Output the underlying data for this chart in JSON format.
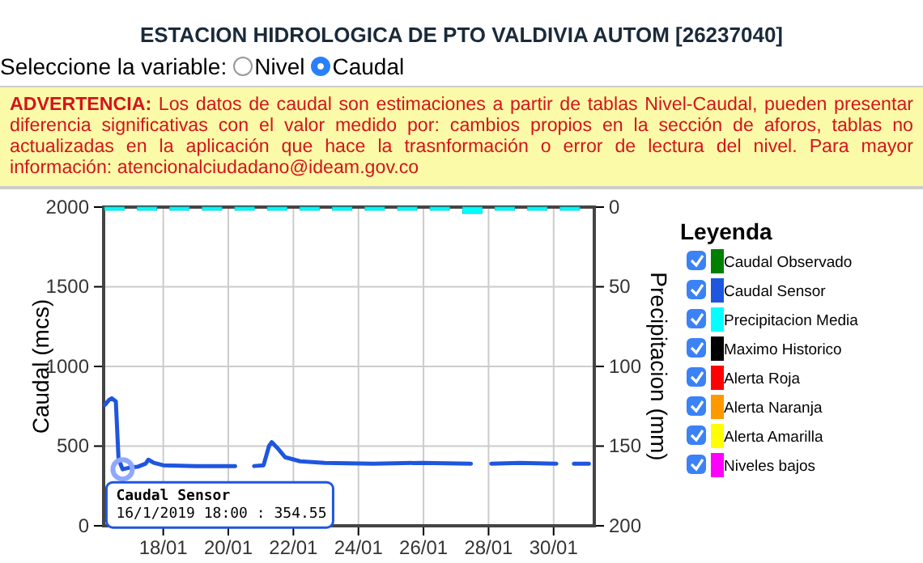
{
  "chart_data": {
    "type": "line",
    "title": "ESTACION HIDROLOGICA DE PTO VALDIVIA AUTOM [26237040]",
    "annotations": [
      "Seleccione la variable:",
      "Nivel",
      "Caudal",
      "ADVERTENCIA:",
      "Los datos de caudal son estimaciones a partir de tablas Nivel-Caudal, pueden presentar diferencia significativas con el valor medido por: cambios propios en la sección de aforos, tablas no actualizadas en la aplicación que hace la trasnformación o error de lectura del nivel. Para mayor información: atencionalciudadano@ideam.gov.co",
      {
        "text": "Caudal Sensor\n16/1/2019 18:00 : 354.55",
        "x": "2019-01-16T18:00",
        "y": 354.55
      }
    ],
    "ylabel": "Caudal (mcs)",
    "y2label": "Precipitacion (mm)",
    "legend_title": "Leyenda",
    "legend": "right",
    "grid": true,
    "xlim": [
      "2019-01-16T04:00",
      "2019-01-31T06:00"
    ],
    "xticks": [
      {
        "value": "2019-01-18",
        "label": "18/01"
      },
      {
        "value": "2019-01-20",
        "label": "20/01"
      },
      {
        "value": "2019-01-22",
        "label": "22/01"
      },
      {
        "value": "2019-01-24",
        "label": "24/01"
      },
      {
        "value": "2019-01-26",
        "label": "26/01"
      },
      {
        "value": "2019-01-28",
        "label": "28/01"
      },
      {
        "value": "2019-01-30",
        "label": "30/01"
      }
    ],
    "ylim": [
      0,
      2000
    ],
    "yticks": [
      0,
      500,
      1000,
      1500,
      2000
    ],
    "y2lim": [
      200,
      0
    ],
    "y2ticks": [
      0,
      50,
      100,
      150,
      200
    ],
    "series": [
      {
        "name": "Caudal Observado",
        "color": "#008000"
      },
      {
        "name": "Caudal Sensor",
        "color": "#1f56e0",
        "x": [
          "2019-01-16T05:00",
          "2019-01-16T08:00",
          "2019-01-16T10:00",
          "2019-01-16T13:00",
          "2019-01-16T15:00",
          "2019-01-16T18:00",
          "2019-01-16T23:00",
          "2019-01-17T05:00",
          "2019-01-17T11:00",
          "2019-01-17T13:00",
          "2019-01-17T17:00",
          "2019-01-18T00:00",
          "2019-01-19T00:00",
          "2019-01-20T05:00",
          "2019-01-20T12:00",
          "2019-01-20T19:00",
          "2019-01-21T02:00",
          "2019-01-21T06:00",
          "2019-01-21T08:00",
          "2019-01-21T12:00",
          "2019-01-21T18:00",
          "2019-01-22T05:00",
          "2019-01-22T23:00",
          "2019-01-24T11:00",
          "2019-01-25T23:00",
          "2019-01-27T11:00",
          "2019-01-27T18:00",
          "2019-01-28T02:00",
          "2019-01-28T23:00",
          "2019-01-30T02:00",
          "2019-01-30T12:00",
          "2019-01-30T15:00",
          "2019-01-31T02:00"
        ],
        "values": [
          760,
          790,
          800,
          780,
          420,
          354.55,
          365,
          370,
          390,
          415,
          395,
          380,
          375,
          375,
          null,
          375,
          380,
          500,
          525,
          490,
          430,
          405,
          395,
          390,
          395,
          390,
          null,
          390,
          395,
          390,
          null,
          390,
          390
        ]
      },
      {
        "name": "Precipitacion Media",
        "type": "bar",
        "axis": "y2",
        "color": "#00ffff",
        "x": [
          "2019-01-16T12:00",
          "2019-01-17T12:00",
          "2019-01-18T12:00",
          "2019-01-19T12:00",
          "2019-01-20T12:00",
          "2019-01-21T12:00",
          "2019-01-22T12:00",
          "2019-01-23T12:00",
          "2019-01-24T12:00",
          "2019-01-25T12:00",
          "2019-01-26T12:00",
          "2019-01-27T12:00",
          "2019-01-28T12:00",
          "2019-01-29T12:00",
          "2019-01-30T12:00"
        ],
        "values": [
          2,
          2,
          2,
          2,
          2,
          2,
          2,
          2,
          2,
          2,
          2,
          4,
          2,
          2,
          2
        ]
      },
      {
        "name": "Maximo Historico",
        "color": "#000000"
      },
      {
        "name": "Alerta Roja",
        "color": "#ff0000"
      },
      {
        "name": "Alerta Naranja",
        "color": "#ff9900"
      },
      {
        "name": "Alerta Amarilla",
        "color": "#ffff00"
      },
      {
        "name": "Niveles bajos",
        "color": "#ff00ff"
      }
    ]
  }
}
